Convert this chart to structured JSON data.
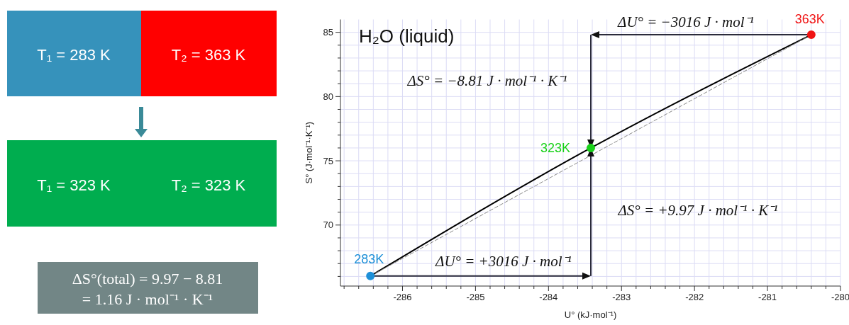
{
  "chart_data": [
    {
      "type": "other",
      "colors": [
        "#3692bb",
        "#ff0000",
        "#00ad4f",
        "#728686"
      ],
      "annotations": [
        "T₁ = 283 K",
        "T₂ = 363 K",
        "T₁ = 323 K",
        "T₂ = 323 K",
        "ΔS°(total) = 9.97 − 8.81",
        "= 1.16 J · mol⁻¹ · K⁻¹"
      ]
    },
    {
      "type": "line",
      "title": "H₂O (liquid)",
      "xlabel": "U° (kJ·mol⁻¹)",
      "ylabel": "S° (J·mol⁻¹·K⁻¹)",
      "xlim": [
        -286.85,
        -280
      ],
      "ylim": [
        65.25,
        86
      ],
      "xticks": [
        {
          "value": -286.8,
          "label": null
        },
        {
          "value": -286.6,
          "label": null
        },
        {
          "value": -286.4,
          "label": null
        },
        {
          "value": -286.2,
          "label": null
        },
        -286,
        {
          "value": -285.8,
          "label": null
        },
        {
          "value": -285.6,
          "label": null
        },
        {
          "value": -285.4,
          "label": null
        },
        {
          "value": -285.2,
          "label": null
        },
        -285,
        {
          "value": -284.8,
          "label": null
        },
        {
          "value": -284.6,
          "label": null
        },
        {
          "value": -284.4,
          "label": null
        },
        {
          "value": -284.2,
          "label": null
        },
        -284,
        {
          "value": -283.8,
          "label": null
        },
        {
          "value": -283.6,
          "label": null
        },
        {
          "value": -283.4,
          "label": null
        },
        {
          "value": -283.2,
          "label": null
        },
        -283,
        {
          "value": -282.8,
          "label": null
        },
        {
          "value": -282.6,
          "label": null
        },
        {
          "value": -282.4,
          "label": null
        },
        {
          "value": -282.2,
          "label": null
        },
        -282,
        {
          "value": -281.8,
          "label": null
        },
        {
          "value": -281.6,
          "label": null
        },
        {
          "value": -281.4,
          "label": null
        },
        {
          "value": -281.2,
          "label": null
        },
        -281,
        {
          "value": -280.8,
          "label": null
        },
        {
          "value": -280.6,
          "label": null
        },
        {
          "value": -280.4,
          "label": null
        },
        {
          "value": -280.2,
          "label": null
        },
        -280
      ],
      "yticks": [
        {
          "value": 66,
          "label": null
        },
        {
          "value": 67,
          "label": null
        },
        {
          "value": 68,
          "label": null
        },
        {
          "value": 69,
          "label": null
        },
        70,
        {
          "value": 71,
          "label": null
        },
        {
          "value": 72,
          "label": null
        },
        {
          "value": 73,
          "label": null
        },
        {
          "value": 74,
          "label": null
        },
        75,
        {
          "value": 76,
          "label": null
        },
        {
          "value": 77,
          "label": null
        },
        {
          "value": 78,
          "label": null
        },
        {
          "value": 79,
          "label": null
        },
        80,
        {
          "value": 81,
          "label": null
        },
        {
          "value": 82,
          "label": null
        },
        {
          "value": 83,
          "label": null
        },
        {
          "value": 84,
          "label": null
        },
        85
      ],
      "grid": true,
      "series": [
        {
          "type": "line",
          "color": "#000000",
          "line_style": "solid",
          "x": [
            -286.44,
            -283.42,
            -280.4
          ],
          "values": [
            66.03,
            76.0,
            84.81
          ]
        },
        {
          "type": "line",
          "color": "#888888",
          "line_style": "dashed",
          "x": [
            -286.44,
            -280.4
          ],
          "values": [
            66.03,
            84.81
          ]
        },
        {
          "type": "scatter",
          "name": "283K",
          "color": "#1e90d8",
          "marker": "circle",
          "x": [
            -286.44
          ],
          "values": [
            66.03
          ]
        },
        {
          "type": "scatter",
          "name": "323K",
          "color": "#19d119",
          "marker": "circle",
          "x": [
            -283.42
          ],
          "values": [
            76.0
          ]
        },
        {
          "type": "scatter",
          "name": "363K",
          "color": "#f01414",
          "marker": "circle",
          "x": [
            -280.4
          ],
          "values": [
            84.81
          ]
        }
      ],
      "annotations": [
        "ΔU° = −3016 J · mol⁻¹",
        "ΔS° = −8.81 J · mol⁻¹ · K⁻¹",
        "ΔS° = +9.97 J · mol⁻¹ · K⁻¹",
        "ΔU° = +3016 J · mol⁻¹"
      ]
    }
  ]
}
